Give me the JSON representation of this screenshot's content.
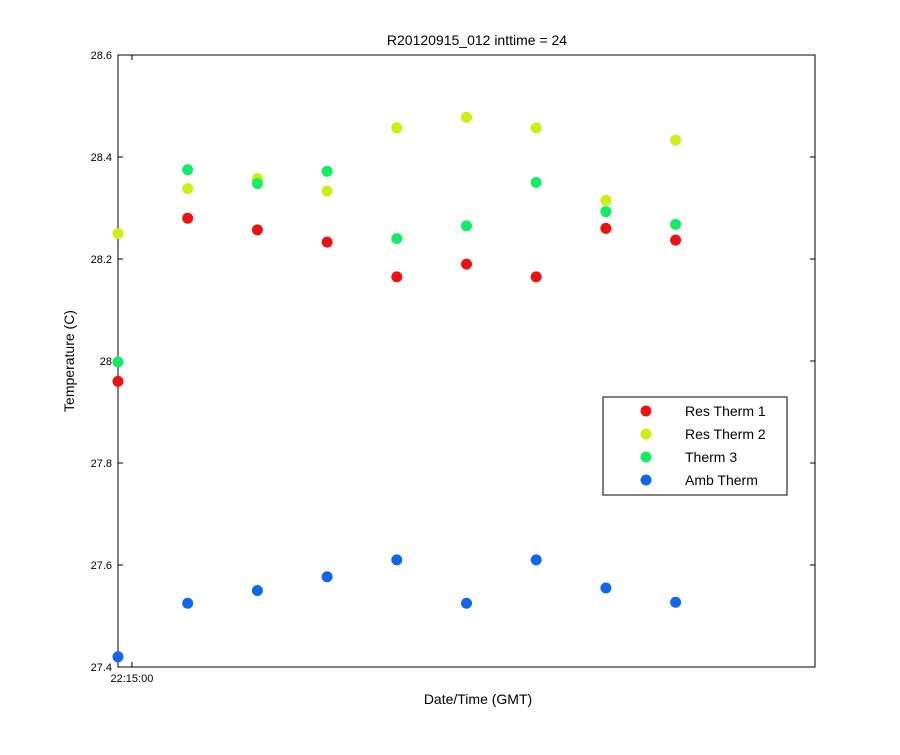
{
  "chart_data": {
    "type": "scatter",
    "title": "R20120915_012 inttime = 24",
    "xlabel": "Date/Time (GMT)",
    "ylabel": "Temperature (C)",
    "ylim": [
      27.4,
      28.6
    ],
    "xlim": [
      0,
      10
    ],
    "grid": false,
    "legend_position": "right",
    "yticks": [
      {
        "value": 27.4,
        "label": "27.4"
      },
      {
        "value": 27.6,
        "label": "27.6"
      },
      {
        "value": 27.8,
        "label": "27.8"
      },
      {
        "value": 28.0,
        "label": "28"
      },
      {
        "value": 28.2,
        "label": "28.2"
      },
      {
        "value": 28.4,
        "label": "28.4"
      },
      {
        "value": 28.6,
        "label": "28.6"
      }
    ],
    "xticks": [
      {
        "value": 0.2,
        "label": "22:15:00"
      }
    ],
    "x": [
      0,
      1,
      2,
      3,
      4,
      5,
      6,
      7,
      8
    ],
    "series": [
      {
        "name": "Res Therm 1",
        "color": "#ee1111",
        "values": [
          27.96,
          28.28,
          28.257,
          28.233,
          28.165,
          28.19,
          28.165,
          28.26,
          28.237
        ]
      },
      {
        "name": "Res Therm 2",
        "color": "#ccee11",
        "values": [
          28.25,
          28.338,
          28.358,
          28.333,
          28.457,
          28.478,
          28.457,
          28.315,
          28.433
        ]
      },
      {
        "name": "Therm 3",
        "color": "#11ee66",
        "values": [
          27.998,
          28.375,
          28.348,
          28.372,
          28.24,
          28.265,
          28.35,
          28.293,
          28.268
        ]
      },
      {
        "name": "Amb Therm",
        "color": "#1166ee",
        "values": [
          27.42,
          27.525,
          27.55,
          27.577,
          27.61,
          27.525,
          27.61,
          27.555,
          27.527
        ]
      }
    ]
  }
}
